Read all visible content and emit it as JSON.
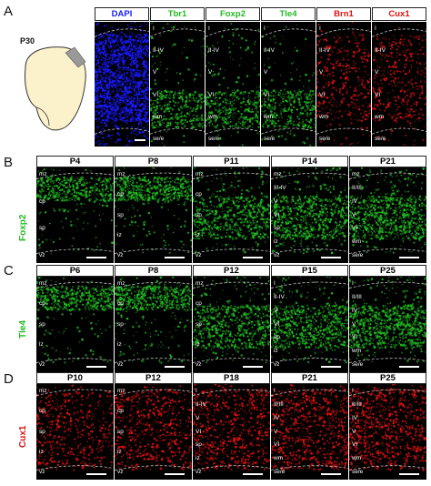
{
  "panels": {
    "A": {
      "letter": "A",
      "age": "P30",
      "channels": [
        {
          "name": "DAPI",
          "color": "#1a1aff",
          "labels": []
        },
        {
          "name": "Tbr1",
          "color": "#22bb22",
          "labels": [
            "I",
            "II-IV",
            "V",
            "VI",
            "wm",
            "se/e"
          ]
        },
        {
          "name": "Foxp2",
          "color": "#22bb22",
          "labels": [
            "I",
            "II-IV",
            "V",
            "VI",
            "wm",
            "se/e"
          ]
        },
        {
          "name": "Tle4",
          "color": "#22bb22",
          "labels": [
            "I",
            "II-IV",
            "V",
            "VI",
            "wm",
            "se/e"
          ]
        },
        {
          "name": "Brn1",
          "color": "#dd1111",
          "labels": [
            "I",
            "II-IV",
            "V",
            "VI",
            "wm",
            "se/e"
          ]
        },
        {
          "name": "Cux1",
          "color": "#dd1111",
          "labels": [
            "I",
            "II-IV",
            "V",
            "VI",
            "wm",
            "se/e"
          ]
        }
      ]
    },
    "B": {
      "letter": "B",
      "marker": "Foxp2",
      "marker_color": "#22bb22",
      "columns": [
        {
          "age": "P4",
          "labels": [
            "mz",
            "cp",
            "sp",
            "vz"
          ]
        },
        {
          "age": "P8",
          "labels": [
            "mz",
            "cp",
            "sp",
            "iz",
            "vz"
          ]
        },
        {
          "age": "P11",
          "labels": [
            "mz",
            "cp",
            "sp",
            "iz",
            "vz"
          ]
        },
        {
          "age": "P14",
          "labels": [
            "mz",
            "III-IV",
            "V",
            "VI",
            "sp",
            "iz",
            "vz"
          ]
        },
        {
          "age": "P21",
          "labels": [
            "mz",
            "II/III",
            "IV",
            "V",
            "VI",
            "wm",
            "se/e"
          ]
        }
      ]
    },
    "C": {
      "letter": "C",
      "marker": "Tle4",
      "marker_color": "#22bb22",
      "columns": [
        {
          "age": "P6",
          "labels": [
            "mz",
            "cp",
            "sp",
            "iz",
            "vz"
          ]
        },
        {
          "age": "P8",
          "labels": [
            "mz",
            "cp",
            "sp",
            "iz",
            "vz"
          ]
        },
        {
          "age": "P12",
          "labels": [
            "mz",
            "cp",
            "sp",
            "iz",
            "vz"
          ]
        },
        {
          "age": "P15",
          "labels": [
            "I",
            "II-IV",
            "V",
            "VI",
            "sp",
            "iz",
            "vz"
          ]
        },
        {
          "age": "P25",
          "labels": [
            "I",
            "II/III",
            "IV",
            "V",
            "VI",
            "wm",
            "se/e"
          ]
        }
      ]
    },
    "D": {
      "letter": "D",
      "marker": "Cux1",
      "marker_color": "#dd1111",
      "columns": [
        {
          "age": "P10",
          "labels": [
            "mz",
            "cp",
            "sp",
            "iz",
            "vz"
          ]
        },
        {
          "age": "P12",
          "labels": [
            "mz",
            "cp",
            "sp",
            "iz",
            "vz"
          ]
        },
        {
          "age": "P18",
          "labels": [
            "I",
            "II-IV",
            "V",
            "VI",
            "sp",
            "iz",
            "vz"
          ]
        },
        {
          "age": "P21",
          "labels": [
            "I",
            "II/III",
            "IV",
            "V",
            "VI",
            "wm",
            "se/e"
          ]
        },
        {
          "age": "P25",
          "labels": [
            "I",
            "II/III",
            "IV",
            "V",
            "VI",
            "wm",
            "se/e"
          ]
        }
      ]
    }
  }
}
